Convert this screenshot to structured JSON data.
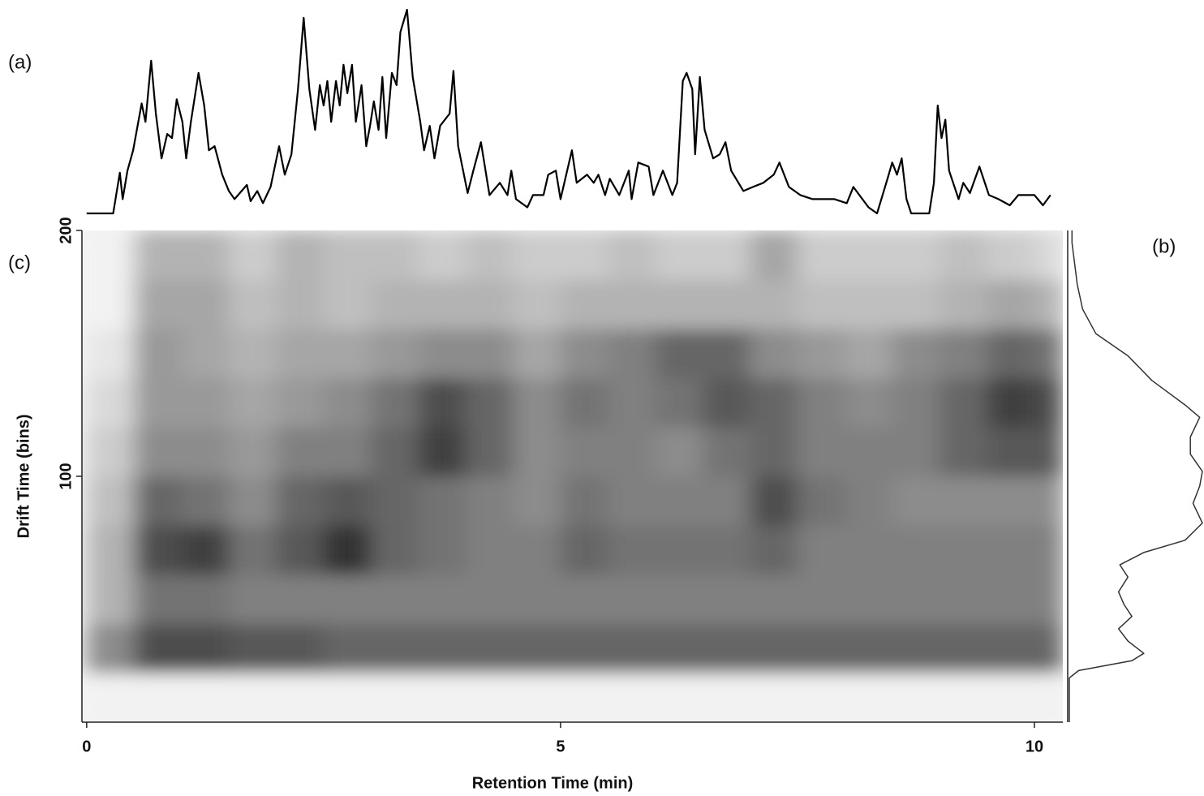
{
  "chart_data": [
    {
      "type": "line",
      "panel_label": "(a)",
      "color": "#000000",
      "ylim": [
        0,
        100
      ],
      "x": [
        0,
        0.28,
        0.35,
        0.38,
        0.43,
        0.49,
        0.58,
        0.62,
        0.68,
        0.73,
        0.79,
        0.85,
        0.9,
        0.95,
        1.01,
        1.05,
        1.1,
        1.18,
        1.24,
        1.29,
        1.35,
        1.43,
        1.5,
        1.56,
        1.69,
        1.73,
        1.8,
        1.86,
        1.94,
        2.03,
        2.09,
        2.16,
        2.23,
        2.29,
        2.35,
        2.41,
        2.46,
        2.5,
        2.54,
        2.58,
        2.63,
        2.67,
        2.71,
        2.75,
        2.8,
        2.84,
        2.9,
        2.95,
        2.99,
        3.03,
        3.08,
        3.12,
        3.16,
        3.22,
        3.27,
        3.31,
        3.38,
        3.44,
        3.52,
        3.56,
        3.62,
        3.67,
        3.73,
        3.83,
        3.87,
        3.92,
        4.02,
        4.08,
        4.16,
        4.25,
        4.36,
        4.44,
        4.48,
        4.53,
        4.65,
        4.71,
        4.82,
        4.87,
        4.95,
        5.0,
        5.12,
        5.17,
        5.28,
        5.35,
        5.4,
        5.47,
        5.52,
        5.62,
        5.72,
        5.75,
        5.82,
        5.93,
        5.98,
        6.08,
        6.18,
        6.23,
        6.29,
        6.33,
        6.39,
        6.42,
        6.47,
        6.52,
        6.61,
        6.68,
        6.74,
        6.8,
        6.93,
        7.03,
        7.14,
        7.25,
        7.31,
        7.41,
        7.53,
        7.66,
        7.77,
        7.89,
        8.02,
        8.09,
        8.25,
        8.34,
        8.45,
        8.5,
        8.55,
        8.6,
        8.65,
        8.7,
        8.89,
        8.94,
        8.98,
        9.02,
        9.06,
        9.1,
        9.2,
        9.25,
        9.32,
        9.42,
        9.52,
        9.62,
        9.74,
        9.83,
        10.0,
        10.09,
        10.17
      ],
      "values": [
        0,
        0,
        20,
        7,
        21,
        31,
        54,
        45,
        75,
        49,
        27,
        39,
        37,
        56,
        45,
        27,
        45,
        69,
        53,
        31,
        33,
        19,
        11,
        7,
        14,
        6,
        11,
        5,
        13,
        33,
        19,
        29,
        61,
        96,
        61,
        41,
        63,
        53,
        65,
        45,
        65,
        53,
        73,
        59,
        73,
        45,
        63,
        33,
        43,
        55,
        41,
        67,
        37,
        69,
        63,
        89,
        100,
        67,
        45,
        31,
        43,
        27,
        43,
        49,
        70,
        33,
        10,
        21,
        35,
        9,
        15,
        9,
        21,
        7,
        3,
        9,
        9,
        19,
        21,
        7,
        31,
        15,
        19,
        15,
        19,
        9,
        17,
        9,
        21,
        7,
        25,
        23,
        9,
        21,
        9,
        15,
        65,
        69,
        61,
        29,
        67,
        41,
        27,
        29,
        35,
        21,
        11,
        13,
        15,
        19,
        25,
        13,
        9,
        7,
        7,
        7,
        5,
        13,
        3,
        0,
        17,
        25,
        19,
        27,
        7,
        0,
        0,
        15,
        53,
        37,
        46,
        21,
        7,
        15,
        10,
        23,
        9,
        7,
        4,
        9,
        9,
        4,
        9
      ]
    },
    {
      "type": "heatmap",
      "panel_label": "(c)",
      "x_label": "Retention Time (min)",
      "y_label": "Drift Time (bins)",
      "xlim": [
        -0.05,
        10.3
      ],
      "ylim": [
        0,
        200
      ],
      "xticks": [
        0,
        5,
        10
      ],
      "yticks": [
        100,
        200
      ],
      "x_edges": [
        0,
        0.5,
        1,
        1.5,
        2,
        2.5,
        3,
        3.5,
        4,
        4.5,
        5,
        5.5,
        6,
        6.5,
        7,
        7.5,
        8,
        8.5,
        9,
        9.5,
        10,
        10.3
      ],
      "y_edges": [
        0,
        20,
        40,
        60,
        80,
        100,
        120,
        140,
        160,
        180,
        200
      ],
      "z": [
        [
          0.05,
          0.05,
          0.05,
          0.05,
          0.05,
          0.05,
          0.05,
          0.05,
          0.05,
          0.05,
          0.05,
          0.05,
          0.05,
          0.05,
          0.05,
          0.05,
          0.05,
          0.05,
          0.05,
          0.05,
          0.05
        ],
        [
          0.45,
          0.7,
          0.7,
          0.65,
          0.65,
          0.6,
          0.6,
          0.6,
          0.6,
          0.6,
          0.6,
          0.6,
          0.6,
          0.6,
          0.6,
          0.6,
          0.6,
          0.6,
          0.6,
          0.6,
          0.6
        ],
        [
          0.3,
          0.55,
          0.55,
          0.5,
          0.5,
          0.5,
          0.5,
          0.5,
          0.5,
          0.5,
          0.5,
          0.5,
          0.5,
          0.5,
          0.5,
          0.5,
          0.5,
          0.5,
          0.5,
          0.5,
          0.5
        ],
        [
          0.3,
          0.7,
          0.75,
          0.55,
          0.65,
          0.8,
          0.6,
          0.55,
          0.5,
          0.5,
          0.6,
          0.55,
          0.55,
          0.55,
          0.6,
          0.5,
          0.5,
          0.5,
          0.5,
          0.5,
          0.5
        ],
        [
          0.25,
          0.6,
          0.55,
          0.45,
          0.6,
          0.65,
          0.6,
          0.55,
          0.5,
          0.45,
          0.55,
          0.5,
          0.5,
          0.5,
          0.7,
          0.55,
          0.5,
          0.45,
          0.45,
          0.45,
          0.45
        ],
        [
          0.2,
          0.45,
          0.45,
          0.4,
          0.5,
          0.5,
          0.6,
          0.75,
          0.6,
          0.45,
          0.5,
          0.5,
          0.45,
          0.55,
          0.6,
          0.5,
          0.5,
          0.5,
          0.6,
          0.65,
          0.65
        ],
        [
          0.15,
          0.4,
          0.4,
          0.35,
          0.4,
          0.45,
          0.55,
          0.7,
          0.6,
          0.45,
          0.55,
          0.5,
          0.55,
          0.65,
          0.6,
          0.5,
          0.45,
          0.5,
          0.6,
          0.75,
          0.7
        ],
        [
          0.1,
          0.4,
          0.35,
          0.3,
          0.35,
          0.35,
          0.4,
          0.45,
          0.45,
          0.35,
          0.45,
          0.5,
          0.6,
          0.6,
          0.45,
          0.4,
          0.35,
          0.45,
          0.5,
          0.6,
          0.55
        ],
        [
          0.05,
          0.35,
          0.35,
          0.25,
          0.3,
          0.25,
          0.3,
          0.3,
          0.3,
          0.25,
          0.3,
          0.3,
          0.3,
          0.3,
          0.3,
          0.25,
          0.25,
          0.25,
          0.3,
          0.35,
          0.3
        ],
        [
          0.05,
          0.3,
          0.3,
          0.2,
          0.3,
          0.25,
          0.25,
          0.2,
          0.25,
          0.2,
          0.2,
          0.25,
          0.2,
          0.2,
          0.35,
          0.2,
          0.2,
          0.2,
          0.25,
          0.2,
          0.15
        ]
      ]
    },
    {
      "type": "profile",
      "panel_label": "(b)",
      "color": "#333333",
      "xlim": [
        0,
        100
      ],
      "drift": [
        0,
        18,
        21,
        25,
        28,
        33,
        38,
        43,
        48,
        53,
        59,
        64,
        69,
        74,
        81,
        89,
        96,
        102,
        109,
        116,
        124,
        129,
        139,
        149,
        158,
        168,
        178,
        195,
        200
      ],
      "values": [
        0,
        0,
        7,
        47,
        56,
        44,
        37,
        47,
        41,
        37,
        44,
        38,
        56,
        87,
        100,
        93,
        98,
        100,
        91,
        91,
        98,
        87,
        62,
        44,
        20,
        10,
        6,
        2,
        2
      ]
    }
  ]
}
